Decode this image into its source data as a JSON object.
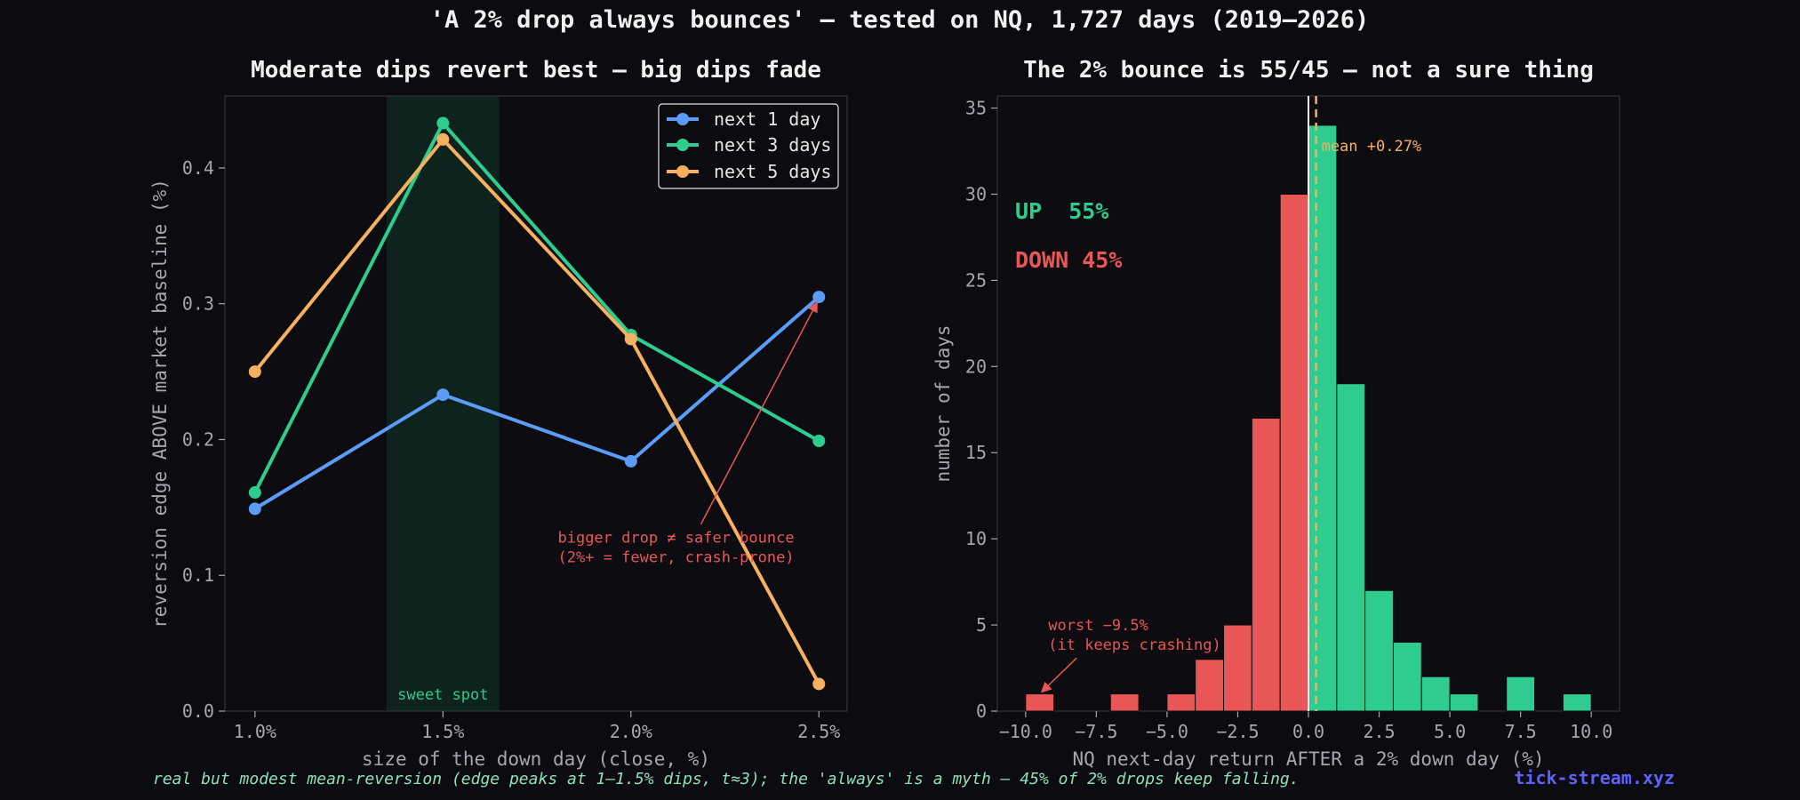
{
  "suptitle": "'A 2% drop always bounces' — tested on NQ, 1,727 days (2019–2026)",
  "footer": "real but modest mean-reversion (edge peaks at 1–1.5% dips, t≈3); the 'always' is a myth — 45% of 2% drops keep falling.",
  "brand": "tick-stream.xyz",
  "colors": {
    "background": "#0b0b10",
    "blue": "#5b9cf6",
    "green": "#2ecc8e",
    "orange": "#f5b060",
    "red": "#e85656",
    "sweet_spot": "#2ecc8e"
  },
  "chart_data": [
    {
      "type": "line",
      "title": "Moderate dips revert best — big dips fade",
      "xlabel": "size of the down day (close, %)",
      "ylabel": "reversion edge ABOVE market baseline (%)",
      "categories": [
        "1.0%",
        "1.5%",
        "2.0%",
        "2.5%"
      ],
      "x": [
        1.0,
        1.5,
        2.0,
        2.5
      ],
      "xlim": [
        0.92,
        2.575
      ],
      "ylim": [
        0.0,
        0.453
      ],
      "yticks": [
        0.0,
        0.1,
        0.2,
        0.3,
        0.4
      ],
      "ytick_labels": [
        "0.0",
        "0.1",
        "0.2",
        "0.3",
        "0.4"
      ],
      "legend_position": "top-right",
      "series": [
        {
          "name": "next 1 day",
          "color": "#5b9cf6",
          "values": [
            0.149,
            0.233,
            0.184,
            0.305
          ]
        },
        {
          "name": "next 3 days",
          "color": "#2ecc8e",
          "values": [
            0.161,
            0.433,
            0.277,
            0.199
          ]
        },
        {
          "name": "next 5 days",
          "color": "#f5b060",
          "values": [
            0.25,
            0.421,
            0.274,
            0.02
          ]
        }
      ],
      "shaded_region": {
        "x": [
          1.35,
          1.65
        ],
        "label": "sweet spot"
      },
      "annotation": {
        "lines": [
          "bigger drop ≠ safer bounce",
          "(2%+ = fewer, crash-prone)"
        ],
        "arrow_to": [
          2.5,
          0.305
        ],
        "text_at": [
          2.12,
          0.118
        ]
      }
    },
    {
      "type": "bar",
      "title": "The 2% bounce is 55/45 — not a sure thing",
      "xlabel": "NQ next-day return AFTER a 2% down day (%)",
      "ylabel": "number of days",
      "xlim": [
        -11.0,
        11.0
      ],
      "ylim": [
        0,
        35.7
      ],
      "xticks": [
        -10.0,
        -7.5,
        -5.0,
        -2.5,
        0.0,
        2.5,
        5.0,
        7.5,
        10.0
      ],
      "xtick_labels": [
        "−10.0",
        "−7.5",
        "−5.0",
        "−2.5",
        "0.0",
        "2.5",
        "5.0",
        "7.5",
        "10.0"
      ],
      "yticks": [
        0,
        5,
        10,
        15,
        20,
        25,
        30,
        35
      ],
      "ytick_labels": [
        "0",
        "5",
        "10",
        "15",
        "20",
        "25",
        "30",
        "35"
      ],
      "bin_width": 1.0,
      "bins": [
        {
          "x0": -10.0,
          "count": 1,
          "sign": "down"
        },
        {
          "x0": -7.0,
          "count": 1,
          "sign": "down"
        },
        {
          "x0": -5.0,
          "count": 1,
          "sign": "down"
        },
        {
          "x0": -4.0,
          "count": 3,
          "sign": "down"
        },
        {
          "x0": -3.0,
          "count": 5,
          "sign": "down"
        },
        {
          "x0": -2.0,
          "count": 17,
          "sign": "down"
        },
        {
          "x0": -1.0,
          "count": 30,
          "sign": "down"
        },
        {
          "x0": 0.0,
          "count": 34,
          "sign": "up"
        },
        {
          "x0": 1.0,
          "count": 19,
          "sign": "up"
        },
        {
          "x0": 2.0,
          "count": 7,
          "sign": "up"
        },
        {
          "x0": 3.0,
          "count": 4,
          "sign": "up"
        },
        {
          "x0": 4.0,
          "count": 2,
          "sign": "up"
        },
        {
          "x0": 5.0,
          "count": 1,
          "sign": "up"
        },
        {
          "x0": 7.0,
          "count": 2,
          "sign": "up"
        },
        {
          "x0": 9.0,
          "count": 1,
          "sign": "up"
        }
      ],
      "zero_line": 0.0,
      "mean": 0.27,
      "mean_label": "mean +0.27%",
      "up_label": "UP  55%",
      "down_label": "DOWN 45%",
      "annotation": {
        "lines": [
          "worst −9.5%",
          "(it keeps crashing)"
        ],
        "arrow_to": [
          -9.5,
          1
        ],
        "text_at": [
          -9.2,
          3.6
        ]
      }
    }
  ]
}
